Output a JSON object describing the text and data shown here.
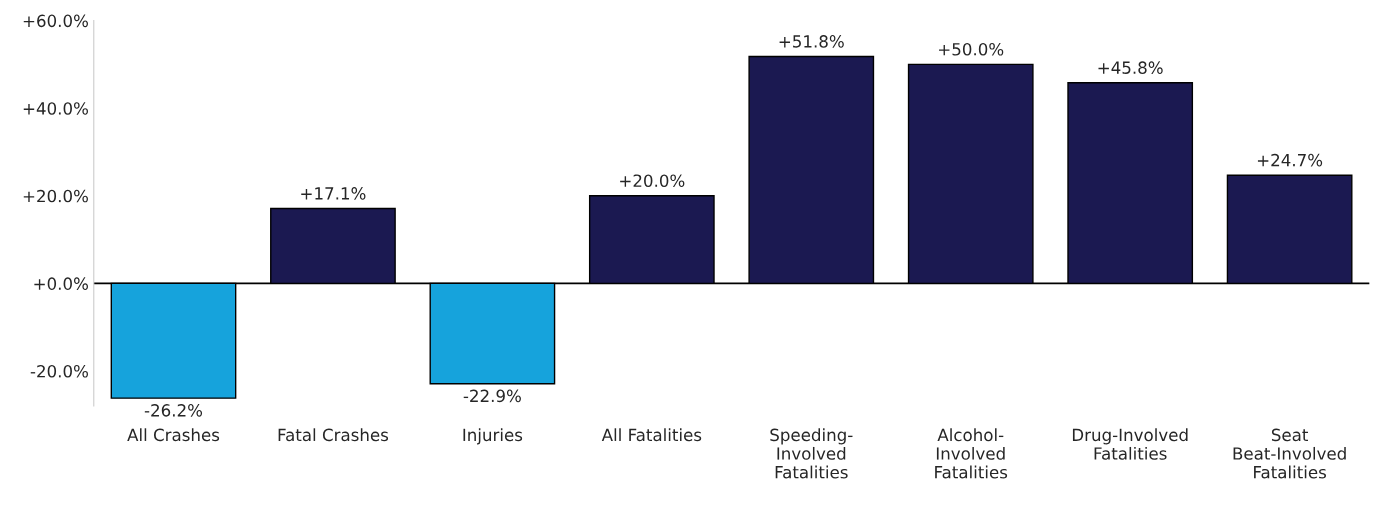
{
  "chart_data": {
    "type": "bar",
    "categories": [
      "All Crashes",
      "Fatal Crashes",
      "Injuries",
      "All Fatalities",
      "Speeding-\nInvolved\nFatalities",
      "Alcohol-\nInvolved\nFatalities",
      "Drug-Involved\nFatalities",
      "Seat\nBeat-Involved\nFatalities"
    ],
    "values": [
      -26.2,
      17.1,
      -22.9,
      20.0,
      51.8,
      50.0,
      45.8,
      24.7
    ],
    "colors": [
      "#16a3dc",
      "#1b1951",
      "#16a3dc",
      "#1b1951",
      "#1b1951",
      "#1b1951",
      "#1b1951",
      "#1b1951"
    ],
    "value_labels": [
      "-26.2%",
      "+17.1%",
      "-22.9%",
      "+20.0%",
      "+51.8%",
      "+50.0%",
      "+45.8%",
      "+24.7%"
    ],
    "ylim": [
      -28,
      60
    ],
    "yticks": [
      {
        "value": -20,
        "label": "-20.0%"
      },
      {
        "value": 0,
        "label": "+0.0%"
      },
      {
        "value": 20,
        "label": "+20.0%"
      },
      {
        "value": 40,
        "label": "+40.0%"
      },
      {
        "value": 60,
        "label": "+60.0%"
      }
    ],
    "ref_lines": [
      {
        "axis": "y",
        "value": 0,
        "color": "#000000"
      }
    ],
    "grid": false,
    "legend": false
  }
}
